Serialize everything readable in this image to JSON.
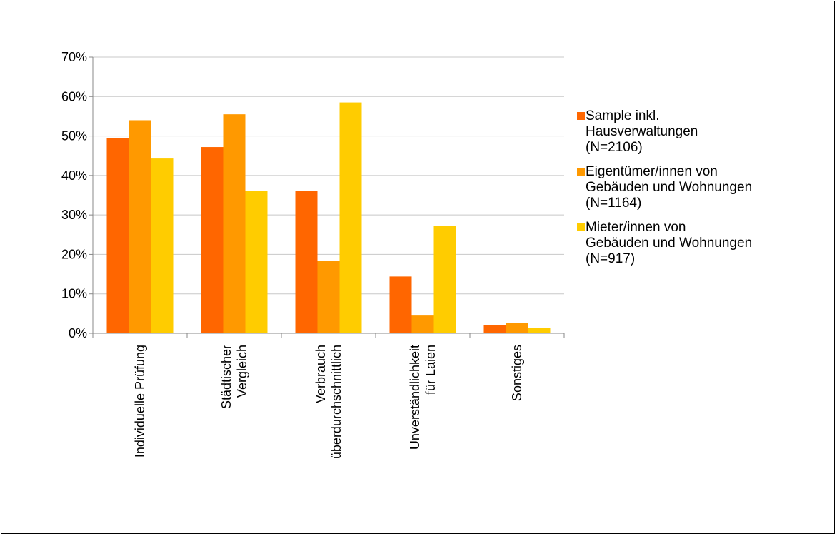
{
  "chart_data": {
    "type": "bar",
    "categories": [
      "Individuelle Prüfung",
      "Städtischer\nVergleich",
      "Verbrauch\nüberdurchschnittlich",
      "Unverständlichkeit\nfür Laien",
      "Sonstiges"
    ],
    "series": [
      {
        "name": "Sample inkl.\nHausverwaltungen\n(N=2106)",
        "color": "#FF6600",
        "values": [
          49.5,
          47.2,
          36.0,
          14.4,
          2.1
        ]
      },
      {
        "name": "Eigentümer/innen von\nGebäuden und Wohnungen\n(N=1164)",
        "color": "#FF9900",
        "values": [
          54.0,
          55.5,
          18.4,
          4.5,
          2.6
        ]
      },
      {
        "name": "Mieter/innen von\nGebäuden und Wohnungen\n(N=917)",
        "color": "#FFCC00",
        "values": [
          44.3,
          36.1,
          58.5,
          27.3,
          1.3
        ]
      }
    ],
    "ylim": [
      0,
      70
    ],
    "yticks": [
      "0%",
      "10%",
      "20%",
      "30%",
      "40%",
      "50%",
      "60%",
      "70%"
    ],
    "grid": true,
    "legend": "right"
  }
}
